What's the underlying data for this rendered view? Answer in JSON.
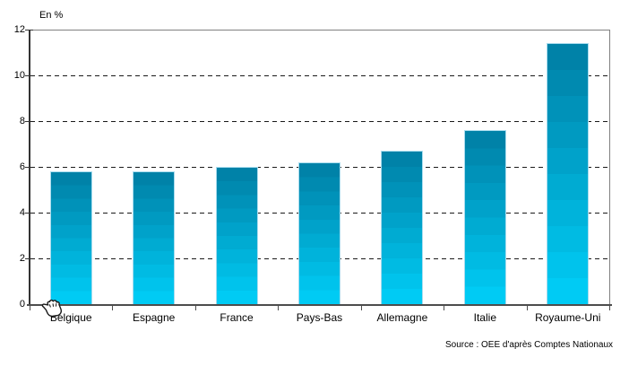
{
  "header": {
    "axis_unit_label": "En %"
  },
  "chart_data": {
    "type": "bar",
    "categories": [
      "Belgique",
      "Espagne",
      "France",
      "Pays-Bas",
      "Allemagne",
      "Italie",
      "Royaume-Uni"
    ],
    "values": [
      5.8,
      5.8,
      6.0,
      6.2,
      6.7,
      7.6,
      11.4
    ],
    "title": "",
    "xlabel": "",
    "ylabel": "En %",
    "ylim": [
      0,
      12
    ],
    "y_ticks": [
      12,
      10,
      8,
      6,
      4,
      2,
      0
    ],
    "gridline_values": [
      10,
      8,
      6,
      4,
      2
    ],
    "grid_style": "dashed-horizontal",
    "legend_position": "none",
    "bar_color_top": "#0082A8",
    "bar_color_bottom": "#00CBF4",
    "bar_border_color": "#A9DCEE",
    "frame_color": "#808080",
    "axis_color": "#333333"
  },
  "footer": {
    "source": "Source : OEE d'après Comptes Nationaux"
  },
  "cursor": {
    "icon": "hand-cursor"
  }
}
